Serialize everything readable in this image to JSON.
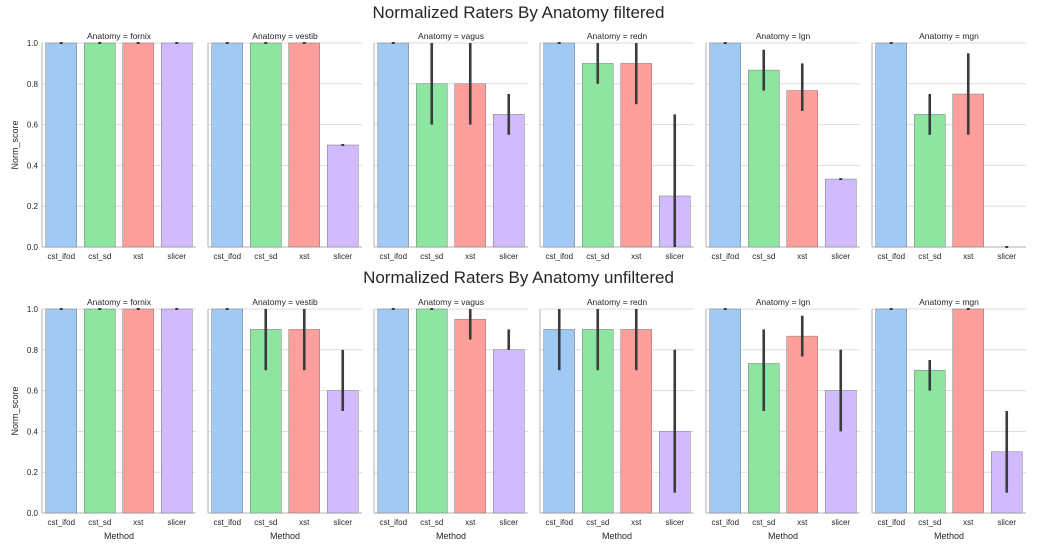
{
  "figure": {
    "groups": [
      {
        "title": "Normalized Raters By Anatomy filtered",
        "xlabel": "",
        "ylabel": "Norm_score"
      },
      {
        "title": "Normalized Raters By Anatomy unfiltered",
        "xlabel": "Method",
        "ylabel": "Norm_score"
      }
    ]
  },
  "colors": {
    "cst_ifod": "#a1c9f4",
    "cst_sd": "#8de5a1",
    "xst": "#ff9f9b",
    "slicer": "#d0bbff",
    "errorbar": "#3b3b3b",
    "grid": "#dddddd",
    "axis": "#b0b0b0"
  },
  "chart_data": [
    {
      "type": "bar",
      "group": 0,
      "title": "Anatomy = fornix",
      "categories": [
        "cst_ifod",
        "cst_sd",
        "xst",
        "slicer"
      ],
      "values": [
        1.0,
        1.0,
        1.0,
        1.0
      ],
      "errors": [
        [
          1.0,
          1.0
        ],
        [
          1.0,
          1.0
        ],
        [
          1.0,
          1.0
        ],
        [
          1.0,
          1.0
        ]
      ],
      "ylim": [
        0,
        1
      ],
      "yticks": [
        "0.0",
        "0.2",
        "0.4",
        "0.6",
        "0.8",
        "1.0"
      ],
      "grid": true
    },
    {
      "type": "bar",
      "group": 0,
      "title": "Anatomy = vestib",
      "categories": [
        "cst_ifod",
        "cst_sd",
        "xst",
        "slicer"
      ],
      "values": [
        1.0,
        1.0,
        1.0,
        0.5
      ],
      "errors": [
        [
          1.0,
          1.0
        ],
        [
          1.0,
          1.0
        ],
        [
          1.0,
          1.0
        ],
        [
          0.5,
          0.5
        ]
      ],
      "ylim": [
        0,
        1
      ],
      "yticks": [
        "0.0",
        "0.2",
        "0.4",
        "0.6",
        "0.8",
        "1.0"
      ],
      "grid": true
    },
    {
      "type": "bar",
      "group": 0,
      "title": "Anatomy = vagus",
      "categories": [
        "cst_ifod",
        "cst_sd",
        "xst",
        "slicer"
      ],
      "values": [
        1.0,
        0.8,
        0.8,
        0.65
      ],
      "errors": [
        [
          1.0,
          1.0
        ],
        [
          0.6,
          1.0
        ],
        [
          0.6,
          1.0
        ],
        [
          0.55,
          0.75
        ]
      ],
      "ylim": [
        0,
        1
      ],
      "yticks": [
        "0.0",
        "0.2",
        "0.4",
        "0.6",
        "0.8",
        "1.0"
      ],
      "grid": true
    },
    {
      "type": "bar",
      "group": 0,
      "title": "Anatomy = redn",
      "categories": [
        "cst_ifod",
        "cst_sd",
        "xst",
        "slicer"
      ],
      "values": [
        1.0,
        0.9,
        0.9,
        0.25
      ],
      "errors": [
        [
          1.0,
          1.0
        ],
        [
          0.8,
          1.0
        ],
        [
          0.7,
          1.0
        ],
        [
          0.0,
          0.65
        ]
      ],
      "ylim": [
        0,
        1
      ],
      "yticks": [
        "0.0",
        "0.2",
        "0.4",
        "0.6",
        "0.8",
        "1.0"
      ],
      "grid": true
    },
    {
      "type": "bar",
      "group": 0,
      "title": "Anatomy = lgn",
      "categories": [
        "cst_ifod",
        "cst_sd",
        "xst",
        "slicer"
      ],
      "values": [
        1.0,
        0.867,
        0.767,
        0.333
      ],
      "errors": [
        [
          1.0,
          1.0
        ],
        [
          0.767,
          0.967
        ],
        [
          0.667,
          0.9
        ],
        [
          0.333,
          0.333
        ]
      ],
      "ylim": [
        0,
        1
      ],
      "yticks": [
        "0.0",
        "0.2",
        "0.4",
        "0.6",
        "0.8",
        "1.0"
      ],
      "grid": true
    },
    {
      "type": "bar",
      "group": 0,
      "title": "Anatomy = mgn",
      "categories": [
        "cst_ifod",
        "cst_sd",
        "xst",
        "slicer"
      ],
      "values": [
        1.0,
        0.65,
        0.75,
        0.0
      ],
      "errors": [
        [
          1.0,
          1.0
        ],
        [
          0.55,
          0.75
        ],
        [
          0.55,
          0.95
        ],
        [
          0.0,
          0.0
        ]
      ],
      "ylim": [
        0,
        1
      ],
      "yticks": [
        "0.0",
        "0.2",
        "0.4",
        "0.6",
        "0.8",
        "1.0"
      ],
      "grid": true
    },
    {
      "type": "bar",
      "group": 1,
      "title": "Anatomy = fornix",
      "categories": [
        "cst_ifod",
        "cst_sd",
        "xst",
        "slicer"
      ],
      "values": [
        1.0,
        1.0,
        1.0,
        1.0
      ],
      "errors": [
        [
          1.0,
          1.0
        ],
        [
          1.0,
          1.0
        ],
        [
          1.0,
          1.0
        ],
        [
          1.0,
          1.0
        ]
      ],
      "ylim": [
        0,
        1
      ],
      "yticks": [
        "0.0",
        "0.2",
        "0.4",
        "0.6",
        "0.8",
        "1.0"
      ],
      "grid": true
    },
    {
      "type": "bar",
      "group": 1,
      "title": "Anatomy = vestib",
      "categories": [
        "cst_ifod",
        "cst_sd",
        "xst",
        "slicer"
      ],
      "values": [
        1.0,
        0.9,
        0.9,
        0.6
      ],
      "errors": [
        [
          1.0,
          1.0
        ],
        [
          0.7,
          1.0
        ],
        [
          0.7,
          1.0
        ],
        [
          0.5,
          0.8
        ]
      ],
      "ylim": [
        0,
        1
      ],
      "yticks": [
        "0.0",
        "0.2",
        "0.4",
        "0.6",
        "0.8",
        "1.0"
      ],
      "grid": true
    },
    {
      "type": "bar",
      "group": 1,
      "title": "Anatomy = vagus",
      "categories": [
        "cst_ifod",
        "cst_sd",
        "xst",
        "slicer"
      ],
      "values": [
        1.0,
        1.0,
        0.95,
        0.8
      ],
      "errors": [
        [
          1.0,
          1.0
        ],
        [
          1.0,
          1.0
        ],
        [
          0.85,
          1.0
        ],
        [
          0.8,
          0.9
        ]
      ],
      "ylim": [
        0,
        1
      ],
      "yticks": [
        "0.0",
        "0.2",
        "0.4",
        "0.6",
        "0.8",
        "1.0"
      ],
      "grid": true
    },
    {
      "type": "bar",
      "group": 1,
      "title": "Anatomy = redn",
      "categories": [
        "cst_ifod",
        "cst_sd",
        "xst",
        "slicer"
      ],
      "values": [
        0.9,
        0.9,
        0.9,
        0.4
      ],
      "errors": [
        [
          0.7,
          1.0
        ],
        [
          0.7,
          1.0
        ],
        [
          0.7,
          1.0
        ],
        [
          0.1,
          0.8
        ]
      ],
      "ylim": [
        0,
        1
      ],
      "yticks": [
        "0.0",
        "0.2",
        "0.4",
        "0.6",
        "0.8",
        "1.0"
      ],
      "grid": true
    },
    {
      "type": "bar",
      "group": 1,
      "title": "Anatomy = lgn",
      "categories": [
        "cst_ifod",
        "cst_sd",
        "xst",
        "slicer"
      ],
      "values": [
        1.0,
        0.733,
        0.867,
        0.6
      ],
      "errors": [
        [
          1.0,
          1.0
        ],
        [
          0.5,
          0.9
        ],
        [
          0.767,
          0.967
        ],
        [
          0.4,
          0.8
        ]
      ],
      "ylim": [
        0,
        1
      ],
      "yticks": [
        "0.0",
        "0.2",
        "0.4",
        "0.6",
        "0.8",
        "1.0"
      ],
      "grid": true
    },
    {
      "type": "bar",
      "group": 1,
      "title": "Anatomy = mgn",
      "categories": [
        "cst_ifod",
        "cst_sd",
        "xst",
        "slicer"
      ],
      "values": [
        1.0,
        0.7,
        1.0,
        0.3
      ],
      "errors": [
        [
          1.0,
          1.0
        ],
        [
          0.6,
          0.75
        ],
        [
          1.0,
          1.0
        ],
        [
          0.1,
          0.5
        ]
      ],
      "ylim": [
        0,
        1
      ],
      "yticks": [
        "0.0",
        "0.2",
        "0.4",
        "0.6",
        "0.8",
        "1.0"
      ],
      "grid": true
    }
  ]
}
